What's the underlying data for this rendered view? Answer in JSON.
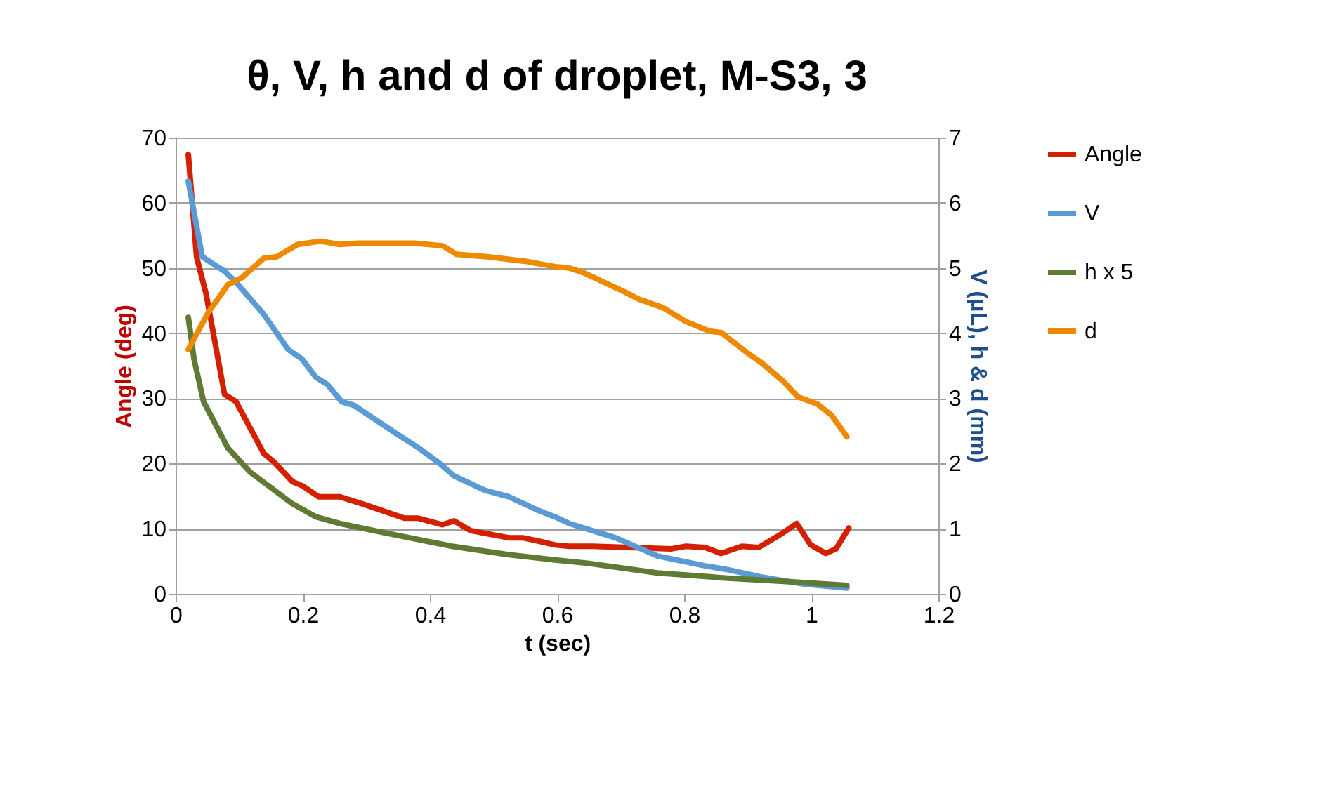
{
  "chart_data": {
    "type": "line",
    "title": "θ, V, h and d of droplet, M-S3, 3",
    "xlabel": "t (sec)",
    "ylabel": "Angle (deg)",
    "y2label": "V (μL),  h & d (mm)",
    "xlim": [
      0,
      1.2
    ],
    "xticks": [
      0,
      0.2,
      0.4,
      0.6,
      0.8,
      1,
      1.2
    ],
    "ylim": [
      0,
      70
    ],
    "yticks": [
      0,
      10,
      20,
      30,
      40,
      50,
      60,
      70
    ],
    "y2lim": [
      0,
      7
    ],
    "y2ticks": [
      0,
      1,
      2,
      3,
      4,
      5,
      6,
      7
    ],
    "grid": "y",
    "legend": "right",
    "marker": "none",
    "line_style": "solid",
    "series": [
      {
        "name": "Angle",
        "color": "#d32000",
        "x": [
          0.02,
          0.033,
          0.048,
          0.077,
          0.095,
          0.139,
          0.155,
          0.184,
          0.199,
          0.225,
          0.258,
          0.294,
          0.36,
          0.382,
          0.42,
          0.438,
          0.464,
          0.524,
          0.546,
          0.575,
          0.597,
          0.619,
          0.656,
          0.78,
          0.803,
          0.833,
          0.858,
          0.891,
          0.917,
          0.95,
          0.977,
          0.999,
          1.023,
          1.039,
          1.059
        ],
        "values": [
          67.4,
          51.7,
          46,
          30.6,
          29.5,
          21.5,
          20.2,
          17.2,
          16.6,
          14.9,
          14.9,
          13.8,
          11.6,
          11.6,
          10.6,
          11.2,
          9.7,
          8.6,
          8.6,
          8.0,
          7.5,
          7.3,
          7.3,
          6.9,
          7.3,
          7.1,
          6.2,
          7.3,
          7.1,
          9.0,
          10.8,
          7.5,
          6.2,
          6.9,
          10.1
        ]
      },
      {
        "name": "V",
        "color": "#5b9bd5",
        "axis": "y2",
        "x": [
          0.02,
          0.042,
          0.077,
          0.095,
          0.137,
          0.177,
          0.199,
          0.221,
          0.239,
          0.261,
          0.281,
          0.347,
          0.382,
          0.413,
          0.438,
          0.486,
          0.524,
          0.568,
          0.597,
          0.619,
          0.692,
          0.758,
          0.833,
          0.869,
          0.921,
          0.988,
          1.056
        ],
        "values": [
          6.33,
          5.17,
          4.95,
          4.78,
          4.31,
          3.75,
          3.6,
          3.32,
          3.21,
          2.95,
          2.89,
          2.46,
          2.24,
          2.02,
          1.81,
          1.59,
          1.49,
          1.29,
          1.18,
          1.08,
          0.86,
          0.58,
          0.43,
          0.37,
          0.26,
          0.15,
          0.09
        ]
      },
      {
        "name": "h x 5",
        "color": "#5f7a35",
        "axis": "y2",
        "x": [
          0.02,
          0.029,
          0.044,
          0.082,
          0.117,
          0.184,
          0.221,
          0.258,
          0.347,
          0.435,
          0.524,
          0.597,
          0.648,
          0.758,
          0.869,
          0.957,
          1.056
        ],
        "values": [
          4.24,
          3.6,
          2.95,
          2.24,
          1.87,
          1.38,
          1.18,
          1.08,
          0.9,
          0.73,
          0.6,
          0.52,
          0.47,
          0.32,
          0.24,
          0.19,
          0.13
        ]
      },
      {
        "name": "d",
        "color": "#ed8a00",
        "axis": "y2",
        "x": [
          0.02,
          0.051,
          0.082,
          0.104,
          0.139,
          0.159,
          0.192,
          0.228,
          0.258,
          0.287,
          0.347,
          0.376,
          0.42,
          0.442,
          0.493,
          0.552,
          0.597,
          0.619,
          0.641,
          0.707,
          0.729,
          0.767,
          0.802,
          0.84,
          0.858,
          0.899,
          0.921,
          0.955,
          0.979,
          1.01,
          1.032,
          1.056
        ],
        "values": [
          3.75,
          4.31,
          4.74,
          4.85,
          5.15,
          5.17,
          5.36,
          5.41,
          5.36,
          5.38,
          5.38,
          5.38,
          5.34,
          5.21,
          5.17,
          5.1,
          5.02,
          5.0,
          4.93,
          4.63,
          4.52,
          4.39,
          4.18,
          4.03,
          4.01,
          3.7,
          3.55,
          3.27,
          3.02,
          2.91,
          2.74,
          2.41
        ]
      }
    ]
  }
}
